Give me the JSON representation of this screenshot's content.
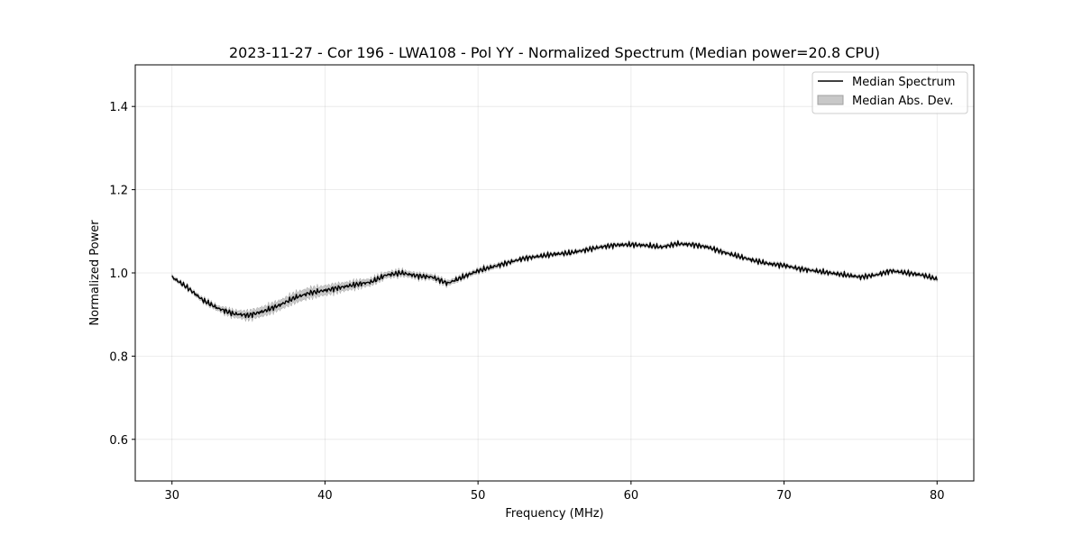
{
  "chart_data": {
    "type": "line",
    "title": "2023-11-27 - Cor 196 - LWA108 - Pol YY - Normalized Spectrum (Median power=20.8 CPU)",
    "xlabel": "Frequency (MHz)",
    "ylabel": "Normalized Power",
    "xlim": [
      27.6,
      82.4
    ],
    "ylim": [
      0.5,
      1.5
    ],
    "xticks": [
      30,
      40,
      50,
      60,
      70,
      80
    ],
    "yticks": [
      0.6,
      0.8,
      1.0,
      1.2,
      1.4
    ],
    "xtick_labels": [
      "30",
      "40",
      "50",
      "60",
      "70",
      "80"
    ],
    "ytick_labels": [
      "0.6",
      "0.8",
      "1.0",
      "1.2",
      "1.4"
    ],
    "grid": true,
    "legend_position": "top-right",
    "series": [
      {
        "name": "Median Spectrum",
        "color": "#000000",
        "x": [
          30,
          31,
          32,
          33,
          34,
          35,
          36,
          37,
          38,
          39,
          40,
          41,
          42,
          43,
          44,
          45,
          46,
          47,
          48,
          49,
          50,
          51,
          52,
          53,
          54,
          55,
          56,
          57,
          58,
          59,
          60,
          61,
          62,
          63,
          64,
          65,
          66,
          67,
          68,
          69,
          70,
          71,
          72,
          73,
          74,
          75,
          76,
          77,
          78,
          79,
          80
        ],
        "values": [
          0.99,
          0.965,
          0.935,
          0.915,
          0.902,
          0.898,
          0.908,
          0.922,
          0.94,
          0.952,
          0.958,
          0.965,
          0.972,
          0.978,
          0.995,
          1.0,
          0.993,
          0.99,
          0.975,
          0.99,
          1.005,
          1.015,
          1.025,
          1.035,
          1.04,
          1.045,
          1.048,
          1.055,
          1.062,
          1.067,
          1.068,
          1.066,
          1.062,
          1.07,
          1.068,
          1.062,
          1.05,
          1.04,
          1.03,
          1.022,
          1.018,
          1.01,
          1.005,
          1.0,
          0.995,
          0.99,
          0.995,
          1.005,
          1.0,
          0.995,
          0.985
        ]
      }
    ],
    "band": {
      "name": "Median Abs. Dev.",
      "color": "#c8c8c8",
      "x": [
        30,
        31,
        32,
        33,
        34,
        35,
        36,
        37,
        38,
        39,
        40,
        41,
        42,
        43,
        44,
        45,
        46,
        47,
        48,
        49,
        50,
        51,
        52,
        53,
        54,
        55,
        56,
        57,
        58,
        59,
        60,
        61,
        62,
        63,
        64,
        65,
        66,
        67,
        68,
        69,
        70,
        71,
        72,
        73,
        74,
        75,
        76,
        77,
        78,
        79,
        80
      ],
      "half_width": [
        0.004,
        0.004,
        0.005,
        0.006,
        0.008,
        0.01,
        0.011,
        0.011,
        0.012,
        0.012,
        0.011,
        0.01,
        0.009,
        0.008,
        0.007,
        0.007,
        0.006,
        0.006,
        0.006,
        0.005,
        0.005,
        0.005,
        0.004,
        0.004,
        0.004,
        0.004,
        0.004,
        0.004,
        0.004,
        0.004,
        0.004,
        0.004,
        0.004,
        0.004,
        0.004,
        0.004,
        0.004,
        0.004,
        0.004,
        0.004,
        0.004,
        0.004,
        0.004,
        0.004,
        0.004,
        0.004,
        0.004,
        0.004,
        0.004,
        0.004,
        0.004
      ]
    },
    "legend": [
      "Median Spectrum",
      "Median Abs. Dev."
    ]
  }
}
